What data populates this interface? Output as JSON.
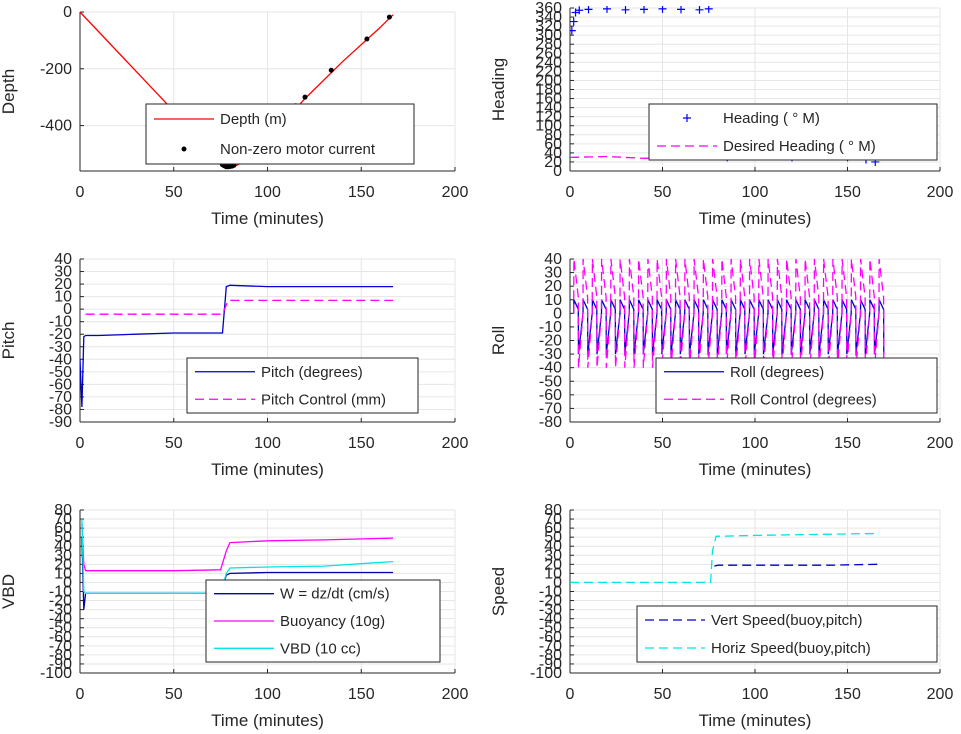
{
  "chart_data": [
    {
      "id": "depth",
      "type": "line",
      "xlabel": "Time (minutes)",
      "ylabel": "Depth",
      "xlim": [
        0,
        200
      ],
      "ylim": [
        -560,
        0
      ],
      "xticks": [
        0,
        50,
        100,
        150,
        200
      ],
      "yticks": [
        0,
        -200,
        -400
      ],
      "legend_position": "lower-right",
      "grid": true,
      "series": [
        {
          "name": "Depth (m)",
          "color": "#ff0000",
          "style": "solid",
          "x": [
            0,
            78,
            82,
            85,
            100,
            120,
            140,
            160,
            167
          ],
          "y": [
            0,
            -545,
            -545,
            -535,
            -450,
            -305,
            -175,
            -55,
            -10
          ]
        },
        {
          "name": "Non-zero motor current",
          "color": "#000000",
          "style": "dots",
          "x": [
            75,
            76,
            77,
            78,
            79,
            80,
            81,
            82,
            115,
            120,
            134,
            153,
            165
          ],
          "y": [
            -530,
            -538,
            -542,
            -545,
            -545,
            -544,
            -543,
            -540,
            -330,
            -300,
            -205,
            -95,
            -18
          ]
        }
      ]
    },
    {
      "id": "heading",
      "type": "scatter",
      "xlabel": "Time (minutes)",
      "ylabel": "Heading",
      "xlim": [
        0,
        200
      ],
      "ylim": [
        0,
        360
      ],
      "xticks": [
        0,
        50,
        100,
        150,
        200
      ],
      "yticks": [
        0,
        20,
        40,
        60,
        80,
        100,
        120,
        140,
        160,
        180,
        200,
        220,
        240,
        260,
        280,
        300,
        320,
        340,
        360
      ],
      "legend_position": "lower-right",
      "grid": true,
      "series": [
        {
          "name": "Heading ( ° M)",
          "color": "#0000ff",
          "style": "plus",
          "x": [
            1,
            2,
            3,
            5,
            10,
            20,
            30,
            40,
            50,
            60,
            70,
            75,
            78,
            80,
            85,
            90,
            100,
            110,
            120,
            130,
            140,
            150,
            160,
            165
          ],
          "y": [
            310,
            330,
            350,
            355,
            357,
            358,
            356,
            357,
            358,
            357,
            356,
            358,
            120,
            140,
            30,
            40,
            35,
            45,
            30,
            40,
            35,
            30,
            25,
            20
          ]
        },
        {
          "name": "Desired Heading ( ° M)",
          "color": "#ff00ff",
          "style": "dashed",
          "x": [
            0,
            20,
            40,
            60,
            80,
            100,
            120,
            140,
            160,
            167
          ],
          "y": [
            30,
            32,
            28,
            30,
            35,
            30,
            28,
            32,
            30,
            30
          ]
        }
      ]
    },
    {
      "id": "pitch",
      "type": "line",
      "xlabel": "Time (minutes)",
      "ylabel": "Pitch",
      "xlim": [
        0,
        200
      ],
      "ylim": [
        -90,
        40
      ],
      "xticks": [
        0,
        50,
        100,
        150,
        200
      ],
      "yticks": [
        -90,
        -80,
        -70,
        -60,
        -50,
        -40,
        -30,
        -20,
        -10,
        0,
        10,
        20,
        30,
        40
      ],
      "legend_position": "lower-right",
      "grid": true,
      "series": [
        {
          "name": "Pitch (degrees)",
          "color": "#0000cc",
          "style": "solid",
          "x": [
            0,
            1,
            2,
            3,
            10,
            30,
            50,
            70,
            76,
            78,
            80,
            100,
            120,
            140,
            160,
            167
          ],
          "y": [
            -40,
            -78,
            -22,
            -21,
            -21,
            -20,
            -19,
            -19,
            -19,
            18,
            19,
            18,
            18,
            18,
            18,
            18
          ]
        },
        {
          "name": "Pitch Control (mm)",
          "color": "#ff00ff",
          "style": "dashed",
          "x": [
            3,
            30,
            60,
            76,
            79,
            100,
            130,
            167
          ],
          "y": [
            -4,
            -4,
            -4,
            -4,
            7,
            7,
            7,
            7
          ]
        }
      ]
    },
    {
      "id": "roll",
      "type": "line",
      "xlabel": "Time (minutes)",
      "ylabel": "Roll",
      "xlim": [
        0,
        200
      ],
      "ylim": [
        -80,
        40
      ],
      "xticks": [
        0,
        50,
        100,
        150,
        200
      ],
      "yticks": [
        -80,
        -70,
        -60,
        -50,
        -40,
        -30,
        -20,
        -10,
        0,
        10,
        20,
        30,
        40
      ],
      "legend_position": "lower-right",
      "grid": true,
      "series": [
        {
          "name": "Roll (degrees)",
          "color": "#0000cc",
          "style": "solid",
          "oscillation": {
            "x_start": 2,
            "x_end": 167,
            "period": 5,
            "high": 10,
            "low": -30
          }
        },
        {
          "name": "Roll Control (degrees)",
          "color": "#ff00ff",
          "style": "dashed",
          "oscillation": {
            "x_start": 2,
            "x_end": 167,
            "period": 5,
            "high": 40,
            "low": -40
          }
        }
      ]
    },
    {
      "id": "vbd",
      "type": "line",
      "xlabel": "Time (minutes)",
      "ylabel": "VBD",
      "xlim": [
        0,
        200
      ],
      "ylim": [
        -100,
        80
      ],
      "xticks": [
        0,
        50,
        100,
        150,
        200
      ],
      "yticks": [
        -100,
        -90,
        -80,
        -70,
        -60,
        -50,
        -40,
        -30,
        -20,
        -10,
        0,
        10,
        20,
        30,
        40,
        50,
        60,
        70,
        80
      ],
      "legend_position": "bottom-right",
      "grid": true,
      "series": [
        {
          "name": "W = dz/dt (cm/s)",
          "color": "#0000aa",
          "style": "solid",
          "x": [
            1,
            2,
            3,
            4,
            20,
            50,
            75,
            78,
            80,
            100,
            130,
            167
          ],
          "y": [
            50,
            -30,
            -12,
            -12,
            -12,
            -12,
            -12,
            8,
            10,
            11,
            11,
            11
          ]
        },
        {
          "name": "Buoyancy (10g)",
          "color": "#ff00ff",
          "style": "solid",
          "x": [
            1,
            2,
            3,
            20,
            50,
            75,
            78,
            80,
            100,
            130,
            167
          ],
          "y": [
            65,
            20,
            13,
            13,
            13,
            14,
            35,
            44,
            46,
            47,
            49
          ]
        },
        {
          "name": "VBD (10 cc)",
          "color": "#00e5e5",
          "style": "solid",
          "x": [
            1,
            2,
            3,
            20,
            50,
            75,
            78,
            80,
            100,
            130,
            167
          ],
          "y": [
            70,
            -10,
            -12,
            -12,
            -12,
            -12,
            10,
            16,
            17,
            18,
            23
          ]
        }
      ]
    },
    {
      "id": "speed",
      "type": "line",
      "xlabel": "Time (minutes)",
      "ylabel": "Speed",
      "xlim": [
        0,
        200
      ],
      "ylim": [
        -100,
        80
      ],
      "xticks": [
        0,
        50,
        100,
        150,
        200
      ],
      "yticks": [
        -100,
        -90,
        -80,
        -70,
        -60,
        -50,
        -40,
        -30,
        -20,
        -10,
        0,
        10,
        20,
        30,
        40,
        50,
        60,
        70,
        80
      ],
      "legend_position": "bottom-right",
      "grid": true,
      "series": [
        {
          "name": "Vert Speed(buoy,pitch)",
          "color": "#0000cc",
          "style": "dashed",
          "x": [
            78,
            80,
            100,
            120,
            140,
            167
          ],
          "y": [
            18,
            19,
            19,
            19,
            19,
            20
          ]
        },
        {
          "name": "Horiz Speed(buoy,pitch)",
          "color": "#00e5e5",
          "style": "dashed",
          "x": [
            0,
            30,
            60,
            76,
            77,
            79,
            100,
            130,
            167
          ],
          "y": [
            0,
            0,
            0,
            0,
            35,
            51,
            52,
            53,
            54
          ]
        }
      ]
    }
  ]
}
